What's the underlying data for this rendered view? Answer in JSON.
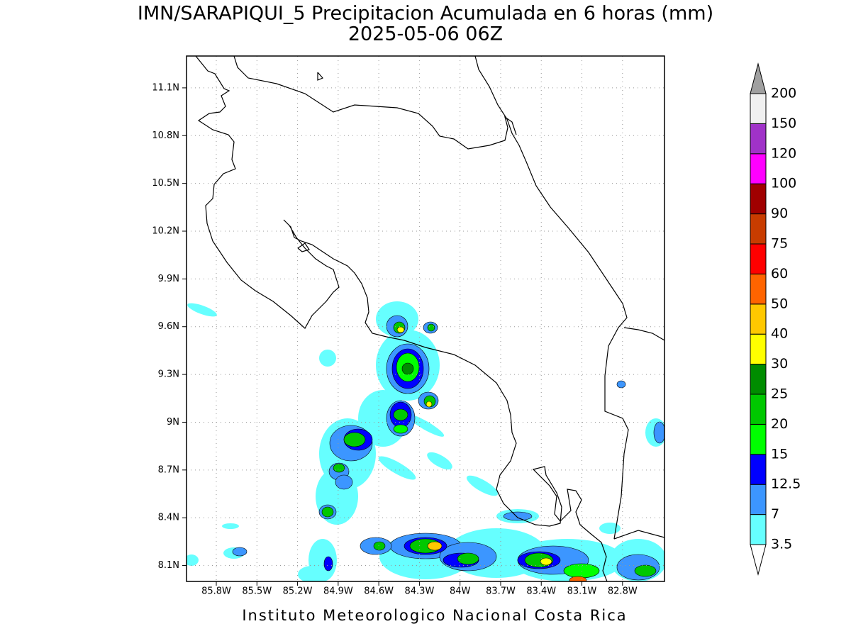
{
  "header": {
    "title": "IMN/SARAPIQUI_5 Precipitacion Acumulada en 6 horas (mm)",
    "subtitle": "2025-05-06 06Z"
  },
  "map": {
    "xlim": [
      -86.02,
      -82.49
    ],
    "ylim": [
      8.0,
      11.3
    ],
    "xticks": [
      {
        "value": -85.8,
        "label": "85.8W"
      },
      {
        "value": -85.5,
        "label": "85.5W"
      },
      {
        "value": -85.2,
        "label": "85.2W"
      },
      {
        "value": -84.9,
        "label": "84.9W"
      },
      {
        "value": -84.6,
        "label": "84.6W"
      },
      {
        "value": -84.3,
        "label": "84.3W"
      },
      {
        "value": -84.0,
        "label": "84W"
      },
      {
        "value": -83.7,
        "label": "83.7W"
      },
      {
        "value": -83.4,
        "label": "83.4W"
      },
      {
        "value": -83.1,
        "label": "83.1W"
      },
      {
        "value": -82.8,
        "label": "82.8W"
      }
    ],
    "yticks": [
      {
        "value": 8.1,
        "label": "8.1N"
      },
      {
        "value": 8.4,
        "label": "8.4N"
      },
      {
        "value": 8.7,
        "label": "8.7N"
      },
      {
        "value": 9.0,
        "label": "9N"
      },
      {
        "value": 9.3,
        "label": "9.3N"
      },
      {
        "value": 9.6,
        "label": "9.6N"
      },
      {
        "value": 9.9,
        "label": "9.9N"
      },
      {
        "value": 10.2,
        "label": "10.2N"
      },
      {
        "value": 10.5,
        "label": "10.5N"
      },
      {
        "value": 10.8,
        "label": "10.8N"
      },
      {
        "value": 11.1,
        "label": "11.1N"
      }
    ],
    "grid": true
  },
  "colorbar": {
    "levels": [
      3.5,
      7,
      12.5,
      15,
      20,
      25,
      30,
      40,
      50,
      60,
      75,
      90,
      100,
      120,
      150,
      200
    ],
    "colors": [
      "#ffffff",
      "#66ffff",
      "#3c96ff",
      "#0000ff",
      "#00ff00",
      "#00c800",
      "#008c00",
      "#ffff00",
      "#ffc800",
      "#ff6400",
      "#ff0000",
      "#c83c00",
      "#a00000",
      "#ff00ff",
      "#a032c8",
      "#f0f0f0",
      "#a0a0a0"
    ]
  },
  "footer": "Instituto Meteorologico Nacional Costa Rica"
}
